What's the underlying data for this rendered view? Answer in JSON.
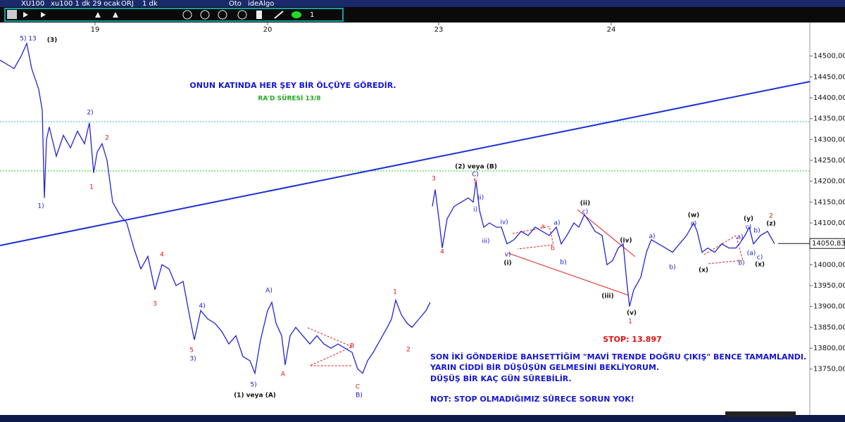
{
  "toolbar": {
    "symbol": "XU100",
    "chart_name": "xu100 1 dk 29 ocak",
    "mode": "ORJ",
    "period": "1 dk",
    "auto": "Oto",
    "brand": "ideAlgo",
    "width": "1"
  },
  "chart_data": {
    "type": "line",
    "color": "#2424d4",
    "x": [
      0,
      10,
      20,
      30,
      38,
      45,
      55,
      60,
      63,
      66,
      70,
      80,
      90,
      100,
      110,
      120,
      127,
      133,
      138,
      145,
      152,
      160,
      170,
      180,
      190,
      200,
      210,
      220,
      230,
      240,
      250,
      260,
      270,
      276,
      285,
      295,
      305,
      315,
      325,
      335,
      345,
      355,
      362,
      370,
      380,
      386,
      392,
      400,
      405,
      412,
      420,
      430,
      440,
      450,
      460,
      470,
      480,
      490,
      500,
      508,
      515,
      522,
      530,
      540,
      550,
      556,
      562,
      570,
      578,
      585,
      595,
      605,
      611,
      null,
      614,
      618,
      624,
      628,
      635,
      645,
      655,
      665,
      672,
      676,
      681,
      687,
      695,
      705,
      712,
      720,
      730,
      740,
      750,
      760,
      770,
      780,
      790,
      797,
      805,
      815,
      822,
      830,
      838,
      845,
      855,
      862,
      870,
      878,
      885,
      890,
      894,
      900,
      910,
      918,
      925,
      935,
      945,
      955,
      965,
      975,
      985,
      990,
      997,
      1005,
      1015,
      1025,
      1035,
      1045,
      1050,
      1058,
      1064,
      1070,
      1080,
      1090,
      1100
    ],
    "values": [
      14490,
      14480,
      14470,
      14500,
      14530,
      14470,
      14420,
      14370,
      14160,
      14300,
      14330,
      14260,
      14310,
      14280,
      14320,
      14290,
      14340,
      14220,
      14270,
      14290,
      14250,
      14150,
      14120,
      14100,
      14040,
      13990,
      14020,
      13940,
      14000,
      13990,
      13950,
      13960,
      13870,
      13820,
      13890,
      13870,
      13860,
      13840,
      13810,
      13830,
      13780,
      13770,
      13740,
      13820,
      13890,
      13910,
      13860,
      13830,
      13760,
      13830,
      13850,
      13830,
      13810,
      13830,
      13810,
      13800,
      13810,
      13800,
      13790,
      13750,
      13740,
      13770,
      13790,
      13820,
      13850,
      13870,
      13915,
      13880,
      13860,
      13850,
      13870,
      13890,
      13910,
      null,
      14140,
      14180,
      14100,
      14040,
      14110,
      14140,
      14150,
      14160,
      14150,
      14200,
      14130,
      14090,
      14100,
      14090,
      14090,
      14050,
      14060,
      14080,
      14070,
      14090,
      14080,
      14070,
      14090,
      14050,
      14070,
      14100,
      14090,
      14120,
      14100,
      14080,
      14070,
      14000,
      14010,
      14040,
      14050,
      13960,
      13900,
      13940,
      13970,
      14030,
      14060,
      14050,
      14040,
      14030,
      14050,
      14070,
      14100,
      14080,
      14030,
      14040,
      14030,
      14050,
      14040,
      14040,
      14050,
      14070,
      14090,
      14050,
      14070,
      14080,
      14050
    ],
    "xlim": [
      0,
      1150
    ],
    "xticks": [
      {
        "value": 135,
        "label": "19"
      },
      {
        "value": 380,
        "label": "20"
      },
      {
        "value": 623,
        "label": "23"
      },
      {
        "value": 868,
        "label": "24"
      }
    ],
    "ylim": [
      13640,
      14550
    ],
    "yticks": [
      {
        "value": 13750,
        "label": "13750,00"
      },
      {
        "value": 13800,
        "label": "13800,00"
      },
      {
        "value": 13850,
        "label": "13850,00"
      },
      {
        "value": 13900,
        "label": "13900,00"
      },
      {
        "value": 13950,
        "label": "13950,00"
      },
      {
        "value": 14000,
        "label": "14000,00"
      },
      {
        "value": 14050,
        "label": "14050,00"
      },
      {
        "value": 14100,
        "label": "14100,00"
      },
      {
        "value": 14150,
        "label": "14150,00"
      },
      {
        "value": 14200,
        "label": "14200,00"
      },
      {
        "value": 14250,
        "label": "14250,00"
      },
      {
        "value": 14300,
        "label": "14300,00"
      },
      {
        "value": 14350,
        "label": "14350,00"
      },
      {
        "value": 14400,
        "label": "14400,00"
      },
      {
        "value": 14450,
        "label": "14450,00"
      },
      {
        "value": 14500,
        "label": "14500,00"
      }
    ],
    "last_price": {
      "value": 14050.83,
      "label": "14050,83"
    },
    "annotations": [
      "5) 13",
      "(3)",
      "1)",
      "2)",
      "2",
      "1",
      "4",
      "3",
      "4)",
      "5",
      "3)",
      "A)",
      "5)",
      "(1) veya (A)",
      "A",
      "B",
      "C",
      "B)",
      "1",
      "2",
      "ONUN KATINDA HER ŞEY BİR ÖLÇÜYE GÖREDİR.",
      "RA'D SÜRESİ 13/8",
      "(2) veya (B)",
      "C)",
      "5",
      "3",
      "ii)",
      "i)",
      "4",
      "iv)",
      "iii)",
      "v)",
      "(i)",
      "a",
      "a)",
      "b",
      "b)",
      "(ii)",
      "c)",
      "(iv)",
      "(iii)",
      "(v)",
      "1",
      "a)",
      "b)",
      "(w)",
      "c)",
      "(x)",
      "b)",
      "a)",
      "(y)",
      "c)",
      "b)",
      "2",
      "(z)",
      "(a)",
      "c)",
      "(x)",
      "STOP: 13.897",
      "SON İKİ GÖNDERİDE BAHSETTİĞİM \"MAVİ TRENDE DOĞRU ÇIKIŞ\" BENCE TAMAMLANDI.",
      "YARIN CİDDİ BİR DÜŞÜŞÜN GELMESİNİ BEKLİYORUM.",
      "DÜŞÜŞ BİR KAÇ GÜN SÜREBİLİR.",
      "NOT: STOP OLMADIĞIMIZ SÜRECE SORUN YOK!"
    ]
  }
}
